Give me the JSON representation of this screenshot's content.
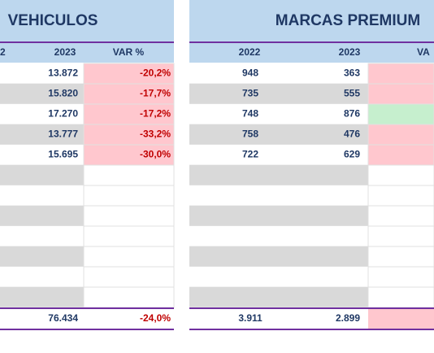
{
  "left": {
    "title": "VEHICULOS",
    "headers": [
      "2",
      "2023",
      "VAR %"
    ],
    "rows": [
      [
        "13.872",
        "-20,2%"
      ],
      [
        "15.820",
        "-17,7%"
      ],
      [
        "17.270",
        "-17,2%"
      ],
      [
        "13.777",
        "-33,2%"
      ],
      [
        "15.695",
        "-30,0%"
      ]
    ],
    "total": [
      "76.434",
      "-24,0%"
    ],
    "var_fills": [
      "#ffc7ce",
      "#ffc7ce",
      "#ffc7ce",
      "#ffc7ce",
      "#ffc7ce"
    ]
  },
  "right": {
    "title": "MARCAS PREMIUM",
    "headers": [
      "2022",
      "2023",
      "VA"
    ],
    "rows": [
      [
        "948",
        "363"
      ],
      [
        "735",
        "555"
      ],
      [
        "748",
        "876"
      ],
      [
        "758",
        "476"
      ],
      [
        "722",
        "629"
      ]
    ],
    "total": [
      "3.911",
      "2.899"
    ],
    "var_fills": [
      "#ffc7ce",
      "#ffc7ce",
      "#c6efce",
      "#ffc7ce",
      "#ffc7ce"
    ],
    "total_var_fill": "#ffc7ce"
  }
}
